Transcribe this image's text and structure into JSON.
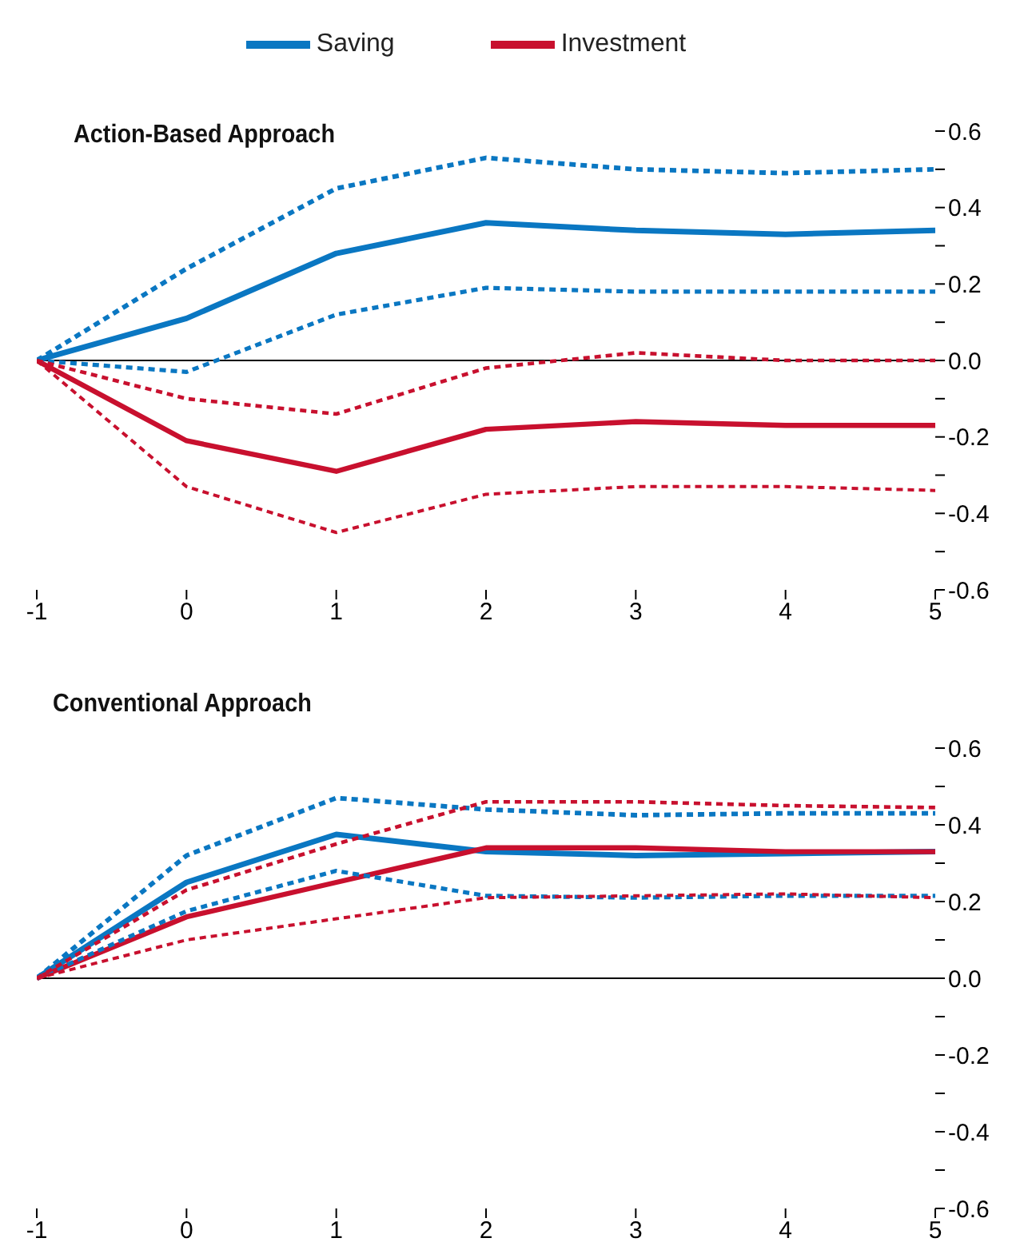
{
  "chart_data": [
    {
      "type": "line",
      "title": "Action-Based Approach",
      "x": [
        -1,
        0,
        1,
        2,
        3,
        4,
        5
      ],
      "xlim": [
        -1,
        5
      ],
      "xticks": [
        -1,
        0,
        1,
        2,
        3,
        4,
        5
      ],
      "ylim": [
        -0.6,
        0.6
      ],
      "yticks": [
        0.6,
        {
          "value": 0.5,
          "label": null
        },
        0.4,
        {
          "value": 0.3,
          "label": null
        },
        0.2,
        {
          "value": 0.1,
          "label": null
        },
        {
          "value": 0,
          "label": "0.0"
        },
        {
          "value": -0.1,
          "label": null
        },
        -0.2,
        {
          "value": -0.3,
          "label": null
        },
        -0.4,
        {
          "value": -0.5,
          "label": null
        },
        -0.6
      ],
      "grid": false,
      "legend": "top",
      "marker": "none",
      "ref_lines": [
        {
          "axis": "y",
          "value": 0,
          "color": "#000000"
        }
      ],
      "series": [
        {
          "name": "Saving",
          "color": "#0a77c2",
          "line_style": "solid",
          "values": [
            0,
            0.11,
            0.28,
            0.36,
            0.34,
            0.33,
            0.34
          ]
        },
        {
          "name": "Investment",
          "color": "#c8102e",
          "line_style": "solid",
          "values": [
            0,
            -0.21,
            -0.29,
            -0.18,
            -0.16,
            -0.17,
            -0.17
          ]
        },
        {
          "color": "#0a77c2",
          "line_style": "dashed",
          "values": [
            0,
            0.24,
            0.45,
            0.53,
            0.5,
            0.49,
            0.5
          ]
        },
        {
          "color": "#0a77c2",
          "line_style": "dashed",
          "values": [
            0,
            -0.03,
            0.12,
            0.19,
            0.18,
            0.18,
            0.18
          ]
        },
        {
          "color": "#c8102e",
          "line_style": "dashed",
          "values": [
            0,
            -0.1,
            -0.14,
            -0.02,
            0.02,
            0,
            0
          ]
        },
        {
          "color": "#c8102e",
          "line_style": "dashed",
          "values": [
            0,
            -0.33,
            -0.45,
            -0.35,
            -0.33,
            -0.33,
            -0.34
          ]
        }
      ]
    },
    {
      "type": "line",
      "title": "Conventional Approach",
      "x": [
        -1,
        0,
        1,
        2,
        3,
        4,
        5
      ],
      "xlim": [
        -1,
        5
      ],
      "xticks": [
        -1,
        0,
        1,
        2,
        3,
        4,
        5
      ],
      "ylim": [
        -0.6,
        0.6
      ],
      "yticks": [
        0.6,
        {
          "value": 0.5,
          "label": null
        },
        0.4,
        {
          "value": 0.3,
          "label": null
        },
        0.2,
        {
          "value": 0.1,
          "label": null
        },
        {
          "value": 0,
          "label": "0.0"
        },
        {
          "value": -0.1,
          "label": null
        },
        -0.2,
        {
          "value": -0.3,
          "label": null
        },
        -0.4,
        {
          "value": -0.5,
          "label": null
        },
        -0.6
      ],
      "grid": false,
      "marker": "none",
      "ref_lines": [
        {
          "axis": "y",
          "value": 0,
          "color": "#000000"
        }
      ],
      "series": [
        {
          "color": "#0a77c2",
          "line_style": "solid",
          "values": [
            0,
            0.25,
            0.375,
            0.33,
            0.32,
            0.325,
            0.33
          ]
        },
        {
          "color": "#c8102e",
          "line_style": "solid",
          "values": [
            0,
            0.16,
            0.25,
            0.34,
            0.34,
            0.33,
            0.33
          ]
        },
        {
          "color": "#0a77c2",
          "line_style": "dashed",
          "values": [
            0,
            0.32,
            0.47,
            0.44,
            0.425,
            0.43,
            0.43
          ]
        },
        {
          "color": "#0a77c2",
          "line_style": "dashed",
          "values": [
            0,
            0.175,
            0.28,
            0.215,
            0.21,
            0.215,
            0.215
          ]
        },
        {
          "color": "#c8102e",
          "line_style": "dashed",
          "values": [
            0,
            0.23,
            0.35,
            0.46,
            0.46,
            0.45,
            0.445
          ]
        },
        {
          "color": "#c8102e",
          "line_style": "dashed",
          "values": [
            0,
            0.1,
            0.155,
            0.21,
            0.215,
            0.22,
            0.21
          ]
        }
      ]
    }
  ]
}
